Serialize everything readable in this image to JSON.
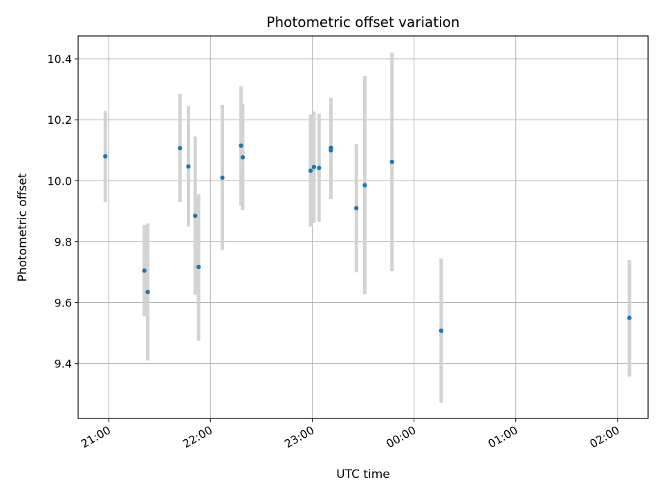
{
  "chart_data": {
    "type": "scatter",
    "title": "Photometric offset variation",
    "xlabel": "UTC time",
    "ylabel": "Photometric offset",
    "x_axis_kind": "time",
    "x_reference_date": "",
    "xlim": [
      "20:42",
      "02:18"
    ],
    "ylim": [
      9.22,
      10.475
    ],
    "grid": true,
    "xticks": [
      "21:00",
      "22:00",
      "23:00",
      "00:00",
      "01:00",
      "02:00"
    ],
    "yticks": [
      "9.4",
      "9.6",
      "9.8",
      "10.0",
      "10.2",
      "10.4"
    ],
    "errorbar_color": "#d3d3d3",
    "marker_color": "#1f77b4",
    "points": [
      {
        "x": "20:58",
        "y": 10.08,
        "ylow": 9.93,
        "yhigh": 10.23
      },
      {
        "x": "21:21",
        "y": 9.705,
        "ylow": 9.555,
        "yhigh": 9.855
      },
      {
        "x": "21:23",
        "y": 9.635,
        "ylow": 9.41,
        "yhigh": 9.86
      },
      {
        "x": "21:42",
        "y": 10.107,
        "ylow": 9.93,
        "yhigh": 10.285
      },
      {
        "x": "21:47",
        "y": 10.047,
        "ylow": 9.85,
        "yhigh": 10.245
      },
      {
        "x": "21:51",
        "y": 9.885,
        "ylow": 9.625,
        "yhigh": 10.145
      },
      {
        "x": "21:53",
        "y": 9.717,
        "ylow": 9.475,
        "yhigh": 9.955
      },
      {
        "x": "22:07",
        "y": 10.01,
        "ylow": 9.773,
        "yhigh": 10.248
      },
      {
        "x": "22:18",
        "y": 10.115,
        "ylow": 9.918,
        "yhigh": 10.31
      },
      {
        "x": "22:19",
        "y": 10.077,
        "ylow": 9.903,
        "yhigh": 10.253
      },
      {
        "x": "22:59",
        "y": 10.033,
        "ylow": 9.85,
        "yhigh": 10.217
      },
      {
        "x": "23:01",
        "y": 10.045,
        "ylow": 9.862,
        "yhigh": 10.227
      },
      {
        "x": "23:04",
        "y": 10.042,
        "ylow": 9.865,
        "yhigh": 10.22
      },
      {
        "x": "23:11",
        "y": 10.108,
        "ylow": 9.94,
        "yhigh": 10.272
      },
      {
        "x": "23:11",
        "y": 10.1,
        "ylow": 9.94,
        "yhigh": 10.27
      },
      {
        "x": "23:26",
        "y": 9.91,
        "ylow": 9.7,
        "yhigh": 10.12
      },
      {
        "x": "23:31",
        "y": 9.985,
        "ylow": 9.628,
        "yhigh": 10.343
      },
      {
        "x": "23:47",
        "y": 10.062,
        "ylow": 9.703,
        "yhigh": 10.42
      },
      {
        "x": "00:16",
        "y": 9.508,
        "ylow": 9.272,
        "yhigh": 9.745
      },
      {
        "x": "02:07",
        "y": 9.55,
        "ylow": 9.357,
        "yhigh": 9.74
      }
    ]
  }
}
